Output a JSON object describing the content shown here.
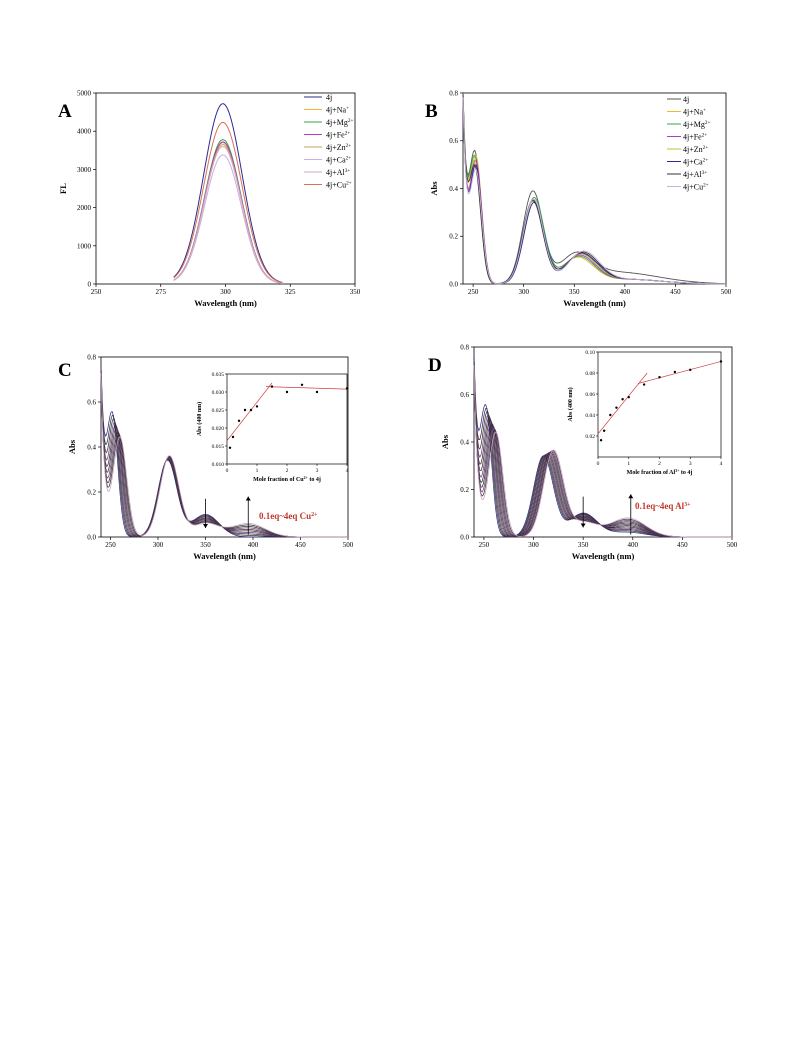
{
  "chart_data": [
    {
      "panel": "A",
      "type": "line",
      "xlabel": "Wavelength (nm)",
      "ylabel": "FL",
      "xlim": [
        250,
        350
      ],
      "ylim": [
        0,
        5000
      ],
      "xticks": [
        250,
        275,
        300,
        325,
        350
      ],
      "yticks": [
        0,
        1000,
        2000,
        3000,
        4000,
        5000
      ],
      "legend_position": "top-right",
      "series": [
        {
          "name": "4j",
          "sup": "",
          "color": "#2b2b8f",
          "peak_x": 299,
          "peak_y": 4720,
          "width": 10.5
        },
        {
          "name": "4j+Na",
          "sup": "+",
          "color": "#f2b630",
          "peak_x": 299,
          "peak_y": 3700,
          "width": 10
        },
        {
          "name": "4j+Mg",
          "sup": "2+",
          "color": "#2fa84f",
          "peak_x": 299,
          "peak_y": 3780,
          "width": 10
        },
        {
          "name": "4j+Fe",
          "sup": "2+",
          "color": "#b03acb",
          "peak_x": 299,
          "peak_y": 3720,
          "width": 10
        },
        {
          "name": "4j+Zn",
          "sup": "2+",
          "color": "#c9a15a",
          "peak_x": 299,
          "peak_y": 3650,
          "width": 10
        },
        {
          "name": "4j+Ca",
          "sup": "2+",
          "color": "#c9b0e0",
          "peak_x": 299,
          "peak_y": 3380,
          "width": 10
        },
        {
          "name": "4j+Al",
          "sup": "3+",
          "color": "#d9a8c8",
          "peak_x": 299,
          "peak_y": 3600,
          "width": 10
        },
        {
          "name": "4j+Cu",
          "sup": "2+",
          "color": "#d8705a",
          "peak_x": 299,
          "peak_y": 4230,
          "width": 10.5
        }
      ]
    },
    {
      "panel": "B",
      "type": "line",
      "xlabel": "Wavelength (nm)",
      "ylabel": "Abs",
      "xlim": [
        240,
        500
      ],
      "ylim": [
        0,
        0.8
      ],
      "xticks": [
        250,
        300,
        350,
        400,
        450,
        500
      ],
      "yticks": [
        0.0,
        0.2,
        0.4,
        0.6,
        0.8
      ],
      "legend_position": "top-right",
      "series": [
        {
          "name": "4j",
          "sup": "",
          "color": "#555555"
        },
        {
          "name": "4j+Na",
          "sup": "+",
          "color": "#f2b630"
        },
        {
          "name": "4j+Mg",
          "sup": "2+",
          "color": "#2fa84f"
        },
        {
          "name": "4j+Fe",
          "sup": "2+",
          "color": "#b03acb"
        },
        {
          "name": "4j+Zn",
          "sup": "2+",
          "color": "#b8c030"
        },
        {
          "name": "4j+Ca",
          "sup": "2+",
          "color": "#2b2b8f"
        },
        {
          "name": "4j+Al",
          "sup": "3+",
          "color": "#333333"
        },
        {
          "name": "4j+Cu",
          "sup": "2+",
          "color": "#c9b0e0"
        }
      ]
    },
    {
      "panel": "C",
      "type": "line",
      "xlabel": "Wavelength (nm)",
      "ylabel": "Abs",
      "xlim": [
        240,
        500
      ],
      "ylim": [
        0,
        0.8
      ],
      "xticks": [
        250,
        300,
        350,
        400,
        450,
        500
      ],
      "yticks": [
        0.0,
        0.2,
        0.4,
        0.6,
        0.8
      ],
      "annotation": "0.1eq~4eq Cu",
      "annotation_sup": "2+",
      "titration_curves": 10,
      "inset": {
        "type": "scatter",
        "xlabel": "Mole fraction of Cu",
        "xlabel_sup": "2+",
        "xlabel_suffix": " to 4j",
        "ylabel": "Abs (400 nm)",
        "xlim": [
          0,
          4
        ],
        "ylim": [
          0.01,
          0.035
        ],
        "xticks": [
          0,
          1,
          2,
          3,
          4
        ],
        "yticks": [
          0.01,
          0.015,
          0.02,
          0.025,
          0.03,
          0.035
        ],
        "points": [
          [
            0.1,
            0.0145
          ],
          [
            0.2,
            0.0175
          ],
          [
            0.4,
            0.022
          ],
          [
            0.6,
            0.025
          ],
          [
            0.8,
            0.025
          ],
          [
            1.0,
            0.026
          ],
          [
            1.5,
            0.0315
          ],
          [
            2.0,
            0.03
          ],
          [
            2.5,
            0.032
          ],
          [
            3.0,
            0.03
          ],
          [
            4.0,
            0.031
          ]
        ],
        "fit_lines": [
          [
            [
              0.0,
              0.0165
            ],
            [
              1.5,
              0.0325
            ]
          ],
          [
            [
              1.3,
              0.0315
            ],
            [
              4.0,
              0.0308
            ]
          ]
        ]
      }
    },
    {
      "panel": "D",
      "type": "line",
      "xlabel": "Wavelength (nm)",
      "ylabel": "Abs",
      "xlim": [
        240,
        500
      ],
      "ylim": [
        0,
        0.8
      ],
      "xticks": [
        250,
        300,
        350,
        400,
        450,
        500
      ],
      "yticks": [
        0.0,
        0.2,
        0.4,
        0.6,
        0.8
      ],
      "annotation": "0.1eq~4eq Al",
      "annotation_sup": "3+",
      "titration_curves": 12,
      "inset": {
        "type": "scatter",
        "xlabel": "Mole fraction of Al",
        "xlabel_sup": "3+",
        "xlabel_suffix": " to 4j",
        "ylabel": "Abs (400 nm)",
        "xlim": [
          0,
          4
        ],
        "ylim": [
          0.0,
          0.1
        ],
        "xticks": [
          0,
          1,
          2,
          3,
          4
        ],
        "yticks": [
          0.02,
          0.04,
          0.06,
          0.08,
          0.1
        ],
        "points": [
          [
            0.1,
            0.016
          ],
          [
            0.2,
            0.025
          ],
          [
            0.4,
            0.04
          ],
          [
            0.6,
            0.047
          ],
          [
            0.8,
            0.055
          ],
          [
            1.0,
            0.057
          ],
          [
            1.5,
            0.069
          ],
          [
            2.0,
            0.076
          ],
          [
            2.5,
            0.081
          ],
          [
            3.0,
            0.083
          ],
          [
            4.0,
            0.091
          ]
        ],
        "fit_lines": [
          [
            [
              0.0,
              0.022
            ],
            [
              1.6,
              0.08
            ]
          ],
          [
            [
              1.3,
              0.07
            ],
            [
              4.0,
              0.091
            ]
          ]
        ]
      }
    }
  ],
  "panel_labels": [
    "A",
    "B",
    "C",
    "D"
  ]
}
